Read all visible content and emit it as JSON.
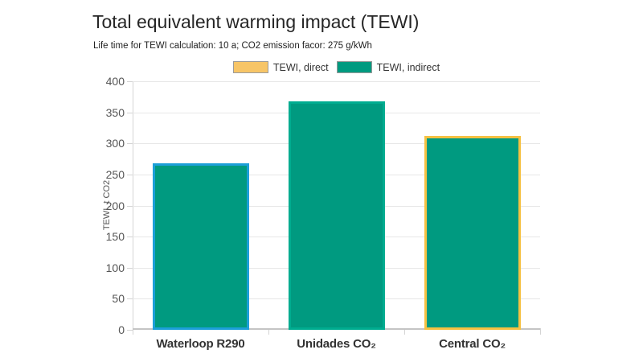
{
  "header": {
    "title": "Total equivalent warming impact (TEWI)",
    "subtitle": "Life time for TEWI calculation: 10 a; CO2 emission facor: 275 g/kWh"
  },
  "legend": {
    "items": [
      {
        "label": "TEWI, direct",
        "fill": "#f7c567",
        "border": "#9b9b9b"
      },
      {
        "label": "TEWI, indirect",
        "fill": "#009a80",
        "border": "#9b9b9b"
      }
    ]
  },
  "chart_data": {
    "type": "bar",
    "title": "Total equivalent warming impact (TEWI)",
    "subtitle": "Life time for TEWI calculation: 10 a; CO2 emission facor: 275 g/kWh",
    "categories": [
      "Waterloop R290",
      "Unidades CO₂",
      "Central CO₂"
    ],
    "values": [
      268,
      368,
      312
    ],
    "bar_fill": "#009a80",
    "bar_border_colors": [
      "#1c9fd8",
      "#00ac90",
      "#f5c142"
    ],
    "xlabel": "",
    "ylabel": "TEWI, t CO2",
    "ylim": [
      0,
      400
    ],
    "ytick_step": 50,
    "grid": true,
    "legend_position": "top-center"
  }
}
